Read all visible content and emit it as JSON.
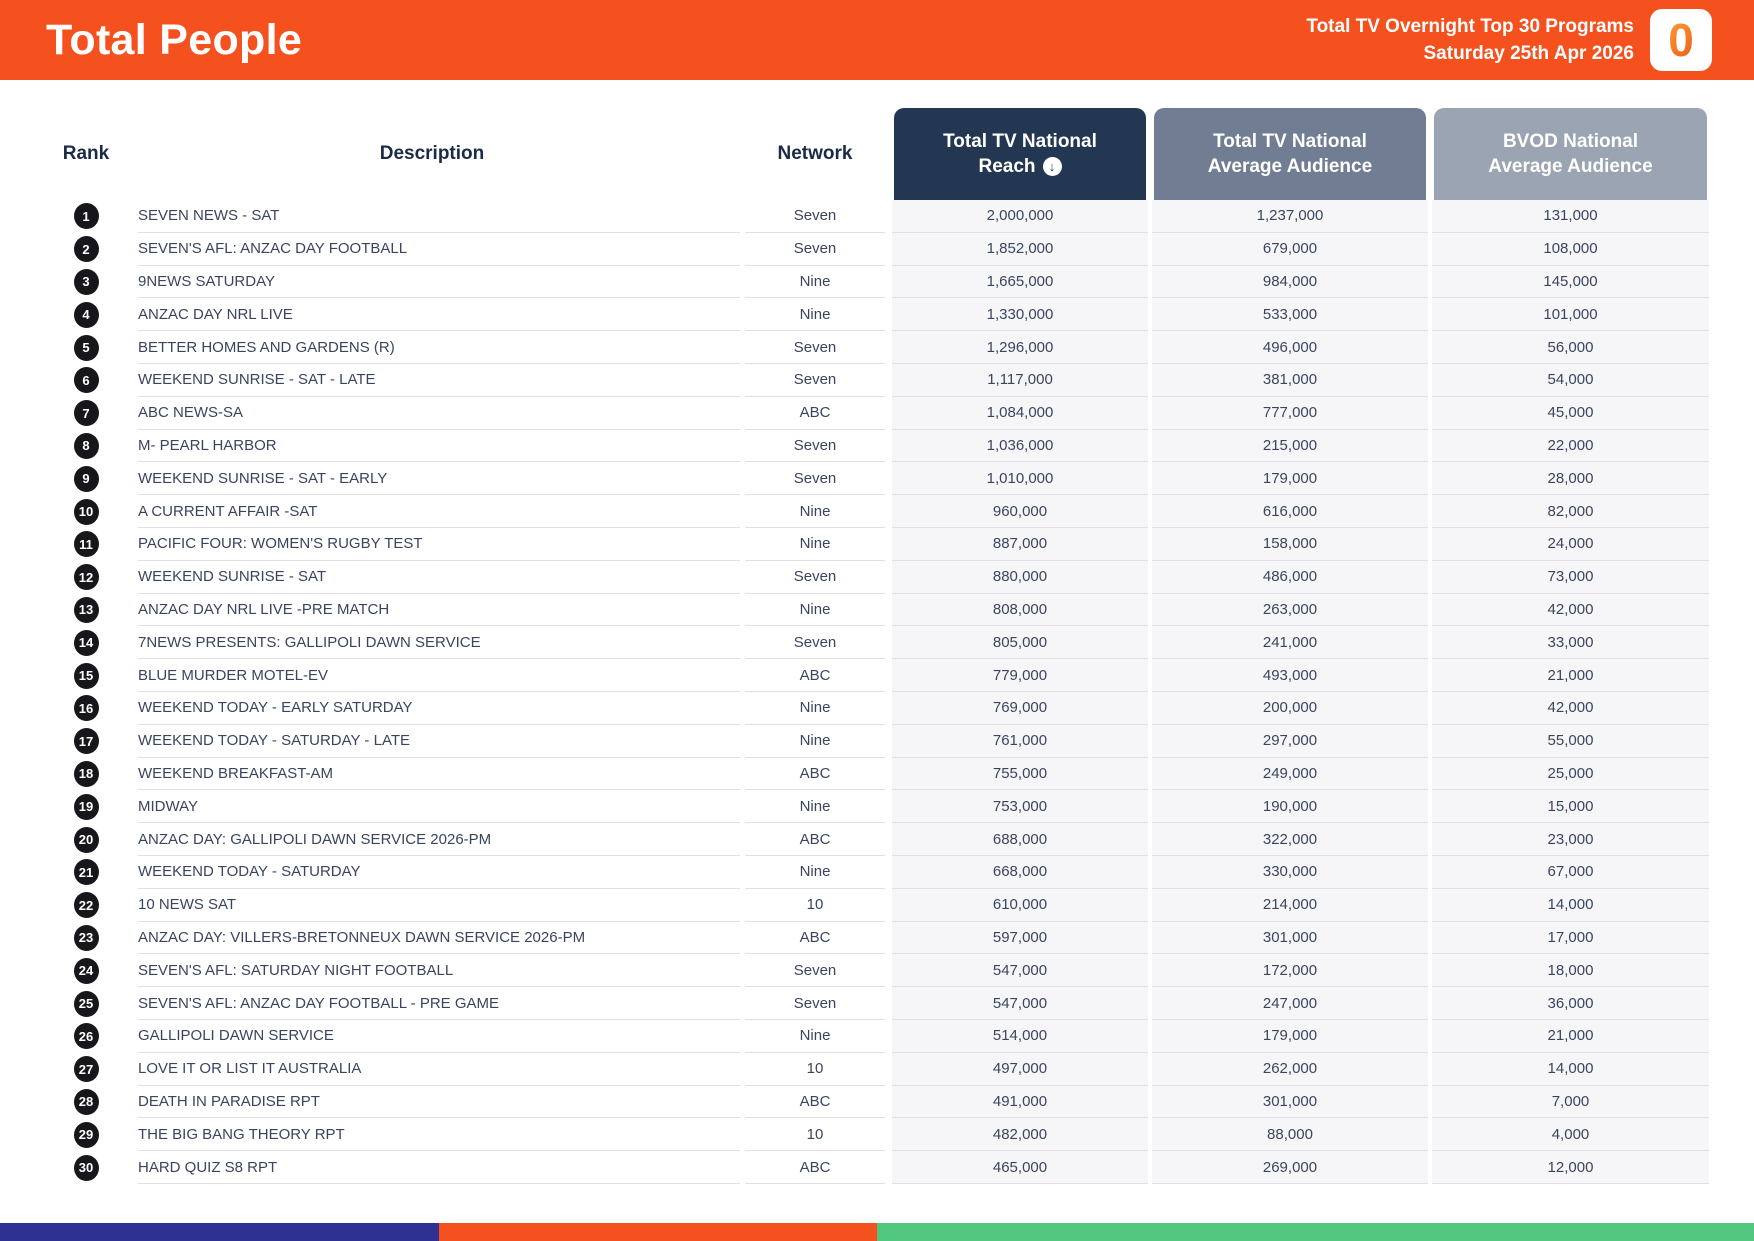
{
  "header": {
    "title": "Total People",
    "report_title": "Total TV Overnight Top 30 Programs",
    "report_date": "Saturday 25th Apr 2026",
    "logo_character": "0"
  },
  "table": {
    "headers": {
      "rank": "Rank",
      "description": "Description",
      "network": "Network",
      "reach_line1": "Total TV National",
      "reach_line2": "Reach",
      "reach_sort_icon": "↓",
      "avg_line1": "Total TV National",
      "avg_line2": "Average Audience",
      "bvod_line1": "BVOD National",
      "bvod_line2": "Average Audience"
    },
    "rows": [
      {
        "rank": "1",
        "description": "SEVEN NEWS - SAT",
        "network": "Seven",
        "reach": "2,000,000",
        "avg_audience": "1,237,000",
        "bvod_audience": "131,000"
      },
      {
        "rank": "2",
        "description": "SEVEN'S AFL: ANZAC DAY FOOTBALL",
        "network": "Seven",
        "reach": "1,852,000",
        "avg_audience": "679,000",
        "bvod_audience": "108,000"
      },
      {
        "rank": "3",
        "description": "9NEWS SATURDAY",
        "network": "Nine",
        "reach": "1,665,000",
        "avg_audience": "984,000",
        "bvod_audience": "145,000"
      },
      {
        "rank": "4",
        "description": "ANZAC DAY NRL LIVE",
        "network": "Nine",
        "reach": "1,330,000",
        "avg_audience": "533,000",
        "bvod_audience": "101,000"
      },
      {
        "rank": "5",
        "description": "BETTER HOMES AND GARDENS (R)",
        "network": "Seven",
        "reach": "1,296,000",
        "avg_audience": "496,000",
        "bvod_audience": "56,000"
      },
      {
        "rank": "6",
        "description": "WEEKEND SUNRISE - SAT - LATE",
        "network": "Seven",
        "reach": "1,117,000",
        "avg_audience": "381,000",
        "bvod_audience": "54,000"
      },
      {
        "rank": "7",
        "description": "ABC NEWS-SA",
        "network": "ABC",
        "reach": "1,084,000",
        "avg_audience": "777,000",
        "bvod_audience": "45,000"
      },
      {
        "rank": "8",
        "description": "M- PEARL HARBOR",
        "network": "Seven",
        "reach": "1,036,000",
        "avg_audience": "215,000",
        "bvod_audience": "22,000"
      },
      {
        "rank": "9",
        "description": "WEEKEND SUNRISE - SAT - EARLY",
        "network": "Seven",
        "reach": "1,010,000",
        "avg_audience": "179,000",
        "bvod_audience": "28,000"
      },
      {
        "rank": "10",
        "description": "A CURRENT AFFAIR -SAT",
        "network": "Nine",
        "reach": "960,000",
        "avg_audience": "616,000",
        "bvod_audience": "82,000"
      },
      {
        "rank": "11",
        "description": "PACIFIC FOUR: WOMEN'S RUGBY TEST",
        "network": "Nine",
        "reach": "887,000",
        "avg_audience": "158,000",
        "bvod_audience": "24,000"
      },
      {
        "rank": "12",
        "description": "WEEKEND SUNRISE - SAT",
        "network": "Seven",
        "reach": "880,000",
        "avg_audience": "486,000",
        "bvod_audience": "73,000"
      },
      {
        "rank": "13",
        "description": "ANZAC DAY NRL LIVE -PRE MATCH",
        "network": "Nine",
        "reach": "808,000",
        "avg_audience": "263,000",
        "bvod_audience": "42,000"
      },
      {
        "rank": "14",
        "description": "7NEWS PRESENTS: GALLIPOLI DAWN SERVICE",
        "network": "Seven",
        "reach": "805,000",
        "avg_audience": "241,000",
        "bvod_audience": "33,000"
      },
      {
        "rank": "15",
        "description": "BLUE MURDER MOTEL-EV",
        "network": "ABC",
        "reach": "779,000",
        "avg_audience": "493,000",
        "bvod_audience": "21,000"
      },
      {
        "rank": "16",
        "description": "WEEKEND TODAY - EARLY SATURDAY",
        "network": "Nine",
        "reach": "769,000",
        "avg_audience": "200,000",
        "bvod_audience": "42,000"
      },
      {
        "rank": "17",
        "description": "WEEKEND TODAY - SATURDAY - LATE",
        "network": "Nine",
        "reach": "761,000",
        "avg_audience": "297,000",
        "bvod_audience": "55,000"
      },
      {
        "rank": "18",
        "description": "WEEKEND BREAKFAST-AM",
        "network": "ABC",
        "reach": "755,000",
        "avg_audience": "249,000",
        "bvod_audience": "25,000"
      },
      {
        "rank": "19",
        "description": "MIDWAY",
        "network": "Nine",
        "reach": "753,000",
        "avg_audience": "190,000",
        "bvod_audience": "15,000"
      },
      {
        "rank": "20",
        "description": "ANZAC DAY: GALLIPOLI DAWN SERVICE 2026-PM",
        "network": "ABC",
        "reach": "688,000",
        "avg_audience": "322,000",
        "bvod_audience": "23,000"
      },
      {
        "rank": "21",
        "description": "WEEKEND TODAY - SATURDAY",
        "network": "Nine",
        "reach": "668,000",
        "avg_audience": "330,000",
        "bvod_audience": "67,000"
      },
      {
        "rank": "22",
        "description": "10 NEWS SAT",
        "network": "10",
        "reach": "610,000",
        "avg_audience": "214,000",
        "bvod_audience": "14,000"
      },
      {
        "rank": "23",
        "description": "ANZAC DAY: VILLERS-BRETONNEUX DAWN SERVICE 2026-PM",
        "network": "ABC",
        "reach": "597,000",
        "avg_audience": "301,000",
        "bvod_audience": "17,000"
      },
      {
        "rank": "24",
        "description": "SEVEN'S AFL: SATURDAY NIGHT FOOTBALL",
        "network": "Seven",
        "reach": "547,000",
        "avg_audience": "172,000",
        "bvod_audience": "18,000"
      },
      {
        "rank": "25",
        "description": "SEVEN'S AFL: ANZAC DAY FOOTBALL - PRE GAME",
        "network": "Seven",
        "reach": "547,000",
        "avg_audience": "247,000",
        "bvod_audience": "36,000"
      },
      {
        "rank": "26",
        "description": "GALLIPOLI DAWN SERVICE",
        "network": "Nine",
        "reach": "514,000",
        "avg_audience": "179,000",
        "bvod_audience": "21,000"
      },
      {
        "rank": "27",
        "description": "LOVE IT OR LIST IT AUSTRALIA",
        "network": "10",
        "reach": "497,000",
        "avg_audience": "262,000",
        "bvod_audience": "14,000"
      },
      {
        "rank": "28",
        "description": "DEATH IN PARADISE RPT",
        "network": "ABC",
        "reach": "491,000",
        "avg_audience": "301,000",
        "bvod_audience": "7,000"
      },
      {
        "rank": "29",
        "description": "THE BIG BANG THEORY RPT",
        "network": "10",
        "reach": "482,000",
        "avg_audience": "88,000",
        "bvod_audience": "4,000"
      },
      {
        "rank": "30",
        "description": "HARD QUIZ S8 RPT",
        "network": "ABC",
        "reach": "465,000",
        "avg_audience": "269,000",
        "bvod_audience": "12,000"
      }
    ]
  },
  "colors": {
    "banner_orange": "#F4511E",
    "reach_header_bg": "#243752",
    "avg_header_bg": "#707D92",
    "bvod_header_bg": "#9AA4B2",
    "rank_badge_bg": "#17171B",
    "row_text": "#39455E",
    "numeric_cell_bg": "#F6F6F8",
    "footer_blue": "#2E3192",
    "footer_orange": "#F4511E",
    "footer_green": "#52C77F"
  }
}
